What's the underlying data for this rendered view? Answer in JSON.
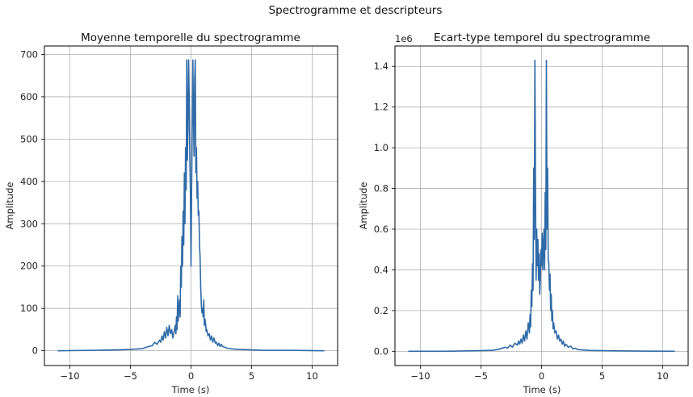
{
  "figure": {
    "suptitle": "Spectrogramme et descripteurs"
  },
  "chart_data": [
    {
      "type": "line",
      "title": "Moyenne temporelle du spectrogramme",
      "xlabel": "Time (s)",
      "ylabel": "Amplitude",
      "xlim": [
        -12.1,
        12.1
      ],
      "ylim": [
        -35,
        720
      ],
      "xticks": [
        -10,
        -5,
        0,
        5,
        10
      ],
      "xtick_labels": [
        "−10",
        "−5",
        "0",
        "5",
        "10"
      ],
      "yticks": [
        0,
        100,
        200,
        300,
        400,
        500,
        600,
        700
      ],
      "ytick_labels": [
        "0",
        "100",
        "200",
        "300",
        "400",
        "500",
        "600",
        "700"
      ],
      "offset_label": "",
      "grid": true,
      "color": "#2f6aa8",
      "series": [
        {
          "x": [
            -11.0,
            -8.0,
            -6.0,
            -5.0,
            -4.0,
            -3.5,
            -3.2,
            -3.0,
            -2.8,
            -2.6,
            -2.5,
            -2.4,
            -2.3,
            -2.2,
            -2.1,
            -2.0,
            -1.9,
            -1.8,
            -1.7,
            -1.6,
            -1.5,
            -1.4,
            -1.3,
            -1.25,
            -1.2,
            -1.15,
            -1.1,
            -1.05,
            -1.0,
            -0.95,
            -0.9,
            -0.85,
            -0.8,
            -0.75,
            -0.7,
            -0.65,
            -0.6,
            -0.55,
            -0.5,
            -0.45,
            -0.4,
            -0.35,
            -0.3,
            -0.25,
            -0.2,
            -0.15,
            -0.1,
            -0.05,
            0.0,
            0.05,
            0.1,
            0.15,
            0.2,
            0.25,
            0.3,
            0.35,
            0.4,
            0.45,
            0.5,
            0.55,
            0.6,
            0.65,
            0.7,
            0.75,
            0.8,
            0.85,
            0.9,
            0.95,
            1.0,
            1.05,
            1.1,
            1.15,
            1.2,
            1.25,
            1.3,
            1.4,
            1.5,
            1.6,
            1.7,
            1.8,
            1.9,
            2.0,
            2.1,
            2.2,
            2.3,
            2.4,
            2.5,
            2.6,
            2.8,
            3.0,
            3.2,
            3.5,
            4.0,
            5.0,
            6.0,
            8.0,
            11.0
          ],
          "y": [
            0,
            1,
            2,
            3,
            5,
            10,
            12,
            20,
            15,
            25,
            20,
            35,
            25,
            45,
            30,
            55,
            35,
            60,
            40,
            50,
            30,
            45,
            60,
            40,
            80,
            50,
            130,
            70,
            100,
            120,
            80,
            200,
            150,
            270,
            200,
            330,
            250,
            420,
            300,
            480,
            380,
            687,
            450,
            520,
            687,
            600,
            460,
            370,
            200,
            380,
            520,
            687,
            560,
            460,
            640,
            687,
            420,
            480,
            360,
            400,
            320,
            330,
            250,
            220,
            150,
            110,
            90,
            100,
            80,
            120,
            60,
            75,
            65,
            45,
            50,
            35,
            40,
            25,
            35,
            20,
            30,
            18,
            20,
            12,
            18,
            10,
            15,
            10,
            8,
            6,
            5,
            4,
            3,
            2,
            1,
            1,
            0
          ]
        }
      ]
    },
    {
      "type": "line",
      "title": "Ecart-type temporel du spectrogramme",
      "xlabel": "Time (s)",
      "ylabel": "Amplitude",
      "xlim": [
        -12.1,
        12.1
      ],
      "ylim": [
        -0.07,
        1.5
      ],
      "xticks": [
        -10,
        -5,
        0,
        5,
        10
      ],
      "xtick_labels": [
        "−10",
        "−5",
        "0",
        "5",
        "10"
      ],
      "yticks": [
        0,
        0.2,
        0.4,
        0.6,
        0.8,
        1.0,
        1.2,
        1.4
      ],
      "ytick_labels": [
        "0.0",
        "0.2",
        "0.4",
        "0.6",
        "0.8",
        "1.0",
        "1.2",
        "1.4"
      ],
      "offset_label": "1e6",
      "grid": true,
      "color": "#2f6aa8",
      "series": [
        {
          "x": [
            -11.0,
            -8.0,
            -6.0,
            -5.0,
            -4.0,
            -3.5,
            -3.0,
            -2.8,
            -2.6,
            -2.4,
            -2.2,
            -2.0,
            -1.9,
            -1.8,
            -1.7,
            -1.6,
            -1.5,
            -1.4,
            -1.3,
            -1.2,
            -1.1,
            -1.0,
            -0.95,
            -0.9,
            -0.85,
            -0.8,
            -0.75,
            -0.7,
            -0.65,
            -0.6,
            -0.55,
            -0.5,
            -0.45,
            -0.4,
            -0.35,
            -0.3,
            -0.25,
            -0.2,
            -0.15,
            -0.1,
            -0.05,
            0.0,
            0.05,
            0.1,
            0.15,
            0.2,
            0.25,
            0.3,
            0.35,
            0.4,
            0.45,
            0.5,
            0.55,
            0.6,
            0.65,
            0.7,
            0.75,
            0.8,
            0.85,
            0.9,
            0.95,
            1.0,
            1.1,
            1.2,
            1.3,
            1.4,
            1.5,
            1.6,
            1.7,
            1.8,
            1.9,
            2.0,
            2.2,
            2.4,
            2.6,
            2.8,
            3.0,
            3.5,
            4.0,
            5.0,
            6.0,
            8.0,
            11.0
          ],
          "y": [
            0,
            0,
            0.002,
            0.003,
            0.005,
            0.01,
            0.02,
            0.015,
            0.03,
            0.02,
            0.04,
            0.03,
            0.05,
            0.035,
            0.06,
            0.04,
            0.08,
            0.05,
            0.1,
            0.06,
            0.14,
            0.09,
            0.18,
            0.12,
            0.3,
            0.22,
            0.43,
            0.3,
            0.9,
            0.55,
            1.43,
            0.8,
            0.35,
            0.6,
            0.42,
            0.55,
            0.35,
            0.48,
            0.28,
            0.35,
            0.5,
            0.42,
            0.58,
            0.4,
            0.52,
            0.6,
            0.4,
            0.78,
            0.5,
            1.43,
            0.6,
            0.9,
            0.45,
            0.43,
            0.3,
            0.38,
            0.2,
            0.28,
            0.15,
            0.2,
            0.11,
            0.14,
            0.09,
            0.1,
            0.06,
            0.08,
            0.05,
            0.06,
            0.035,
            0.05,
            0.025,
            0.035,
            0.02,
            0.025,
            0.012,
            0.015,
            0.008,
            0.006,
            0.004,
            0.003,
            0.002,
            0.001,
            0
          ]
        }
      ]
    }
  ]
}
